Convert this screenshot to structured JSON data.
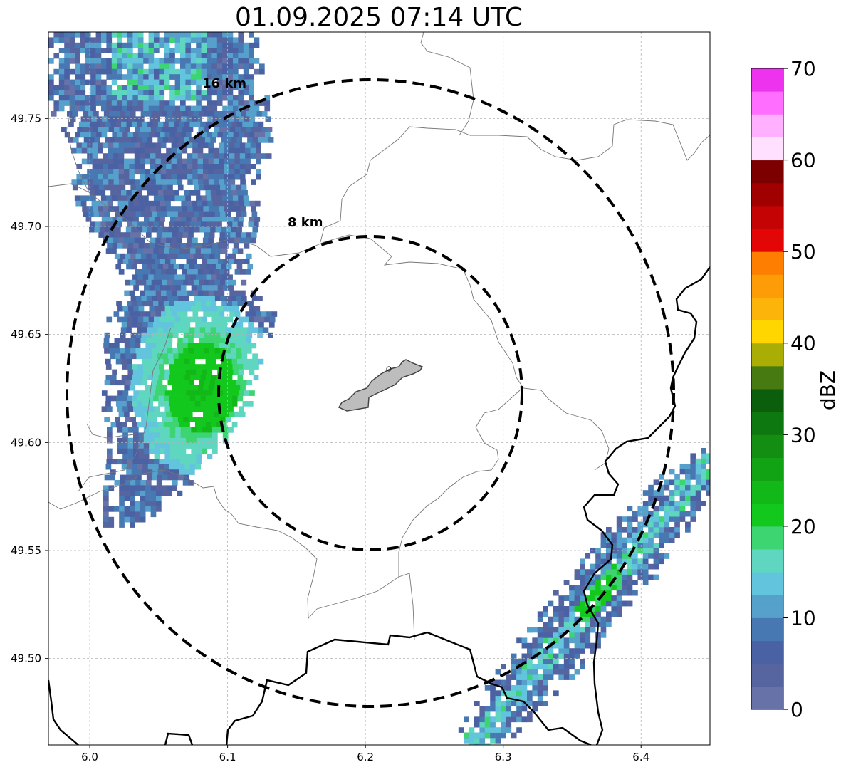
{
  "title": "01.09.2025 07:14 UTC",
  "x_ticks": [
    6.0,
    6.1,
    6.2,
    6.3,
    6.4
  ],
  "x_tick_labels": [
    "6.0",
    "6.1",
    "6.2",
    "6.3",
    "6.4"
  ],
  "y_ticks": [
    49.75,
    49.7,
    49.65,
    49.6,
    49.55,
    49.5
  ],
  "y_tick_labels": [
    "49.75",
    "49.70",
    "49.65",
    "49.60",
    "49.55",
    "49.50"
  ],
  "lon_range": [
    5.97,
    6.45
  ],
  "lat_range": [
    49.46,
    49.79
  ],
  "radar_center": {
    "lon": 6.204,
    "lat": 49.623
  },
  "range_rings": [
    {
      "label": "8 km",
      "radius_km": 8
    },
    {
      "label": "16 km",
      "radius_km": 16
    }
  ],
  "colorbar": {
    "label": "dBZ",
    "min": 0,
    "max": 70,
    "tick_values": [
      0,
      10,
      20,
      30,
      40,
      50,
      60,
      70
    ],
    "tick_labels": [
      "0",
      "10",
      "20",
      "30",
      "40",
      "50",
      "60",
      "70"
    ],
    "colors": [
      "#6672a8",
      "#5664a0",
      "#4a62a4",
      "#4878b2",
      "#56a0cc",
      "#63c4de",
      "#5ed6c0",
      "#3dd472",
      "#13c81c",
      "#12b818",
      "#12a314",
      "#138d12",
      "#0d7810",
      "#0a5e0c",
      "#477a10",
      "#aaae04",
      "#ffd600",
      "#fdb40a",
      "#fd9c06",
      "#fd7e00",
      "#e20606",
      "#c40404",
      "#a00000",
      "#7c0000",
      "#ffe0ff",
      "#ffb0ff",
      "#ff6eff",
      "#ee33ee"
    ]
  },
  "colors": {
    "ring": "#000000",
    "border": "#000000",
    "commune": "#777777",
    "city_fill": "#bdbdbd",
    "grid": "#b4b4b4"
  }
}
